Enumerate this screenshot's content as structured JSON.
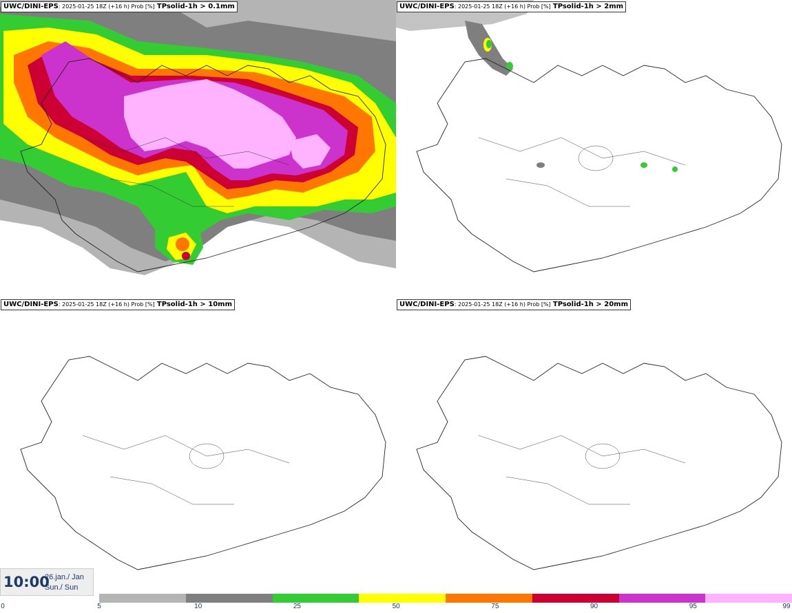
{
  "panels": [
    {
      "model": "UWC/DINI-EPS",
      "run": ": 2025-01-25 18Z (+16 h) Prob [%]",
      "param": "TPsolid-1h > 0.1mm"
    },
    {
      "model": "UWC/DINI-EPS",
      "run": ": 2025-01-25 18Z (+16 h) Prob [%]",
      "param": "TPsolid-1h > 2mm"
    },
    {
      "model": "UWC/DINI-EPS",
      "run": ": 2025-01-25 18Z (+16 h) Prob [%]",
      "param": "TPsolid-1h > 10mm"
    },
    {
      "model": "UWC/DINI-EPS",
      "run": ": 2025-01-25 18Z (+16 h) Prob [%]",
      "param": "TPsolid-1h > 20mm"
    }
  ],
  "time": {
    "main": "10:00",
    "date": "26.jan./ Jan",
    "day": "Sun./ Sun"
  },
  "legend": {
    "labels": [
      "0",
      "5",
      "10",
      "25",
      "50",
      "75",
      "90",
      "95",
      "99"
    ],
    "colors": [
      "#ffffff",
      "#b4b4b4",
      "#7f7f7f",
      "#33cc33",
      "#ffff00",
      "#ff7700",
      "#cc0033",
      "#cc33cc",
      "#ffb3ff"
    ]
  }
}
